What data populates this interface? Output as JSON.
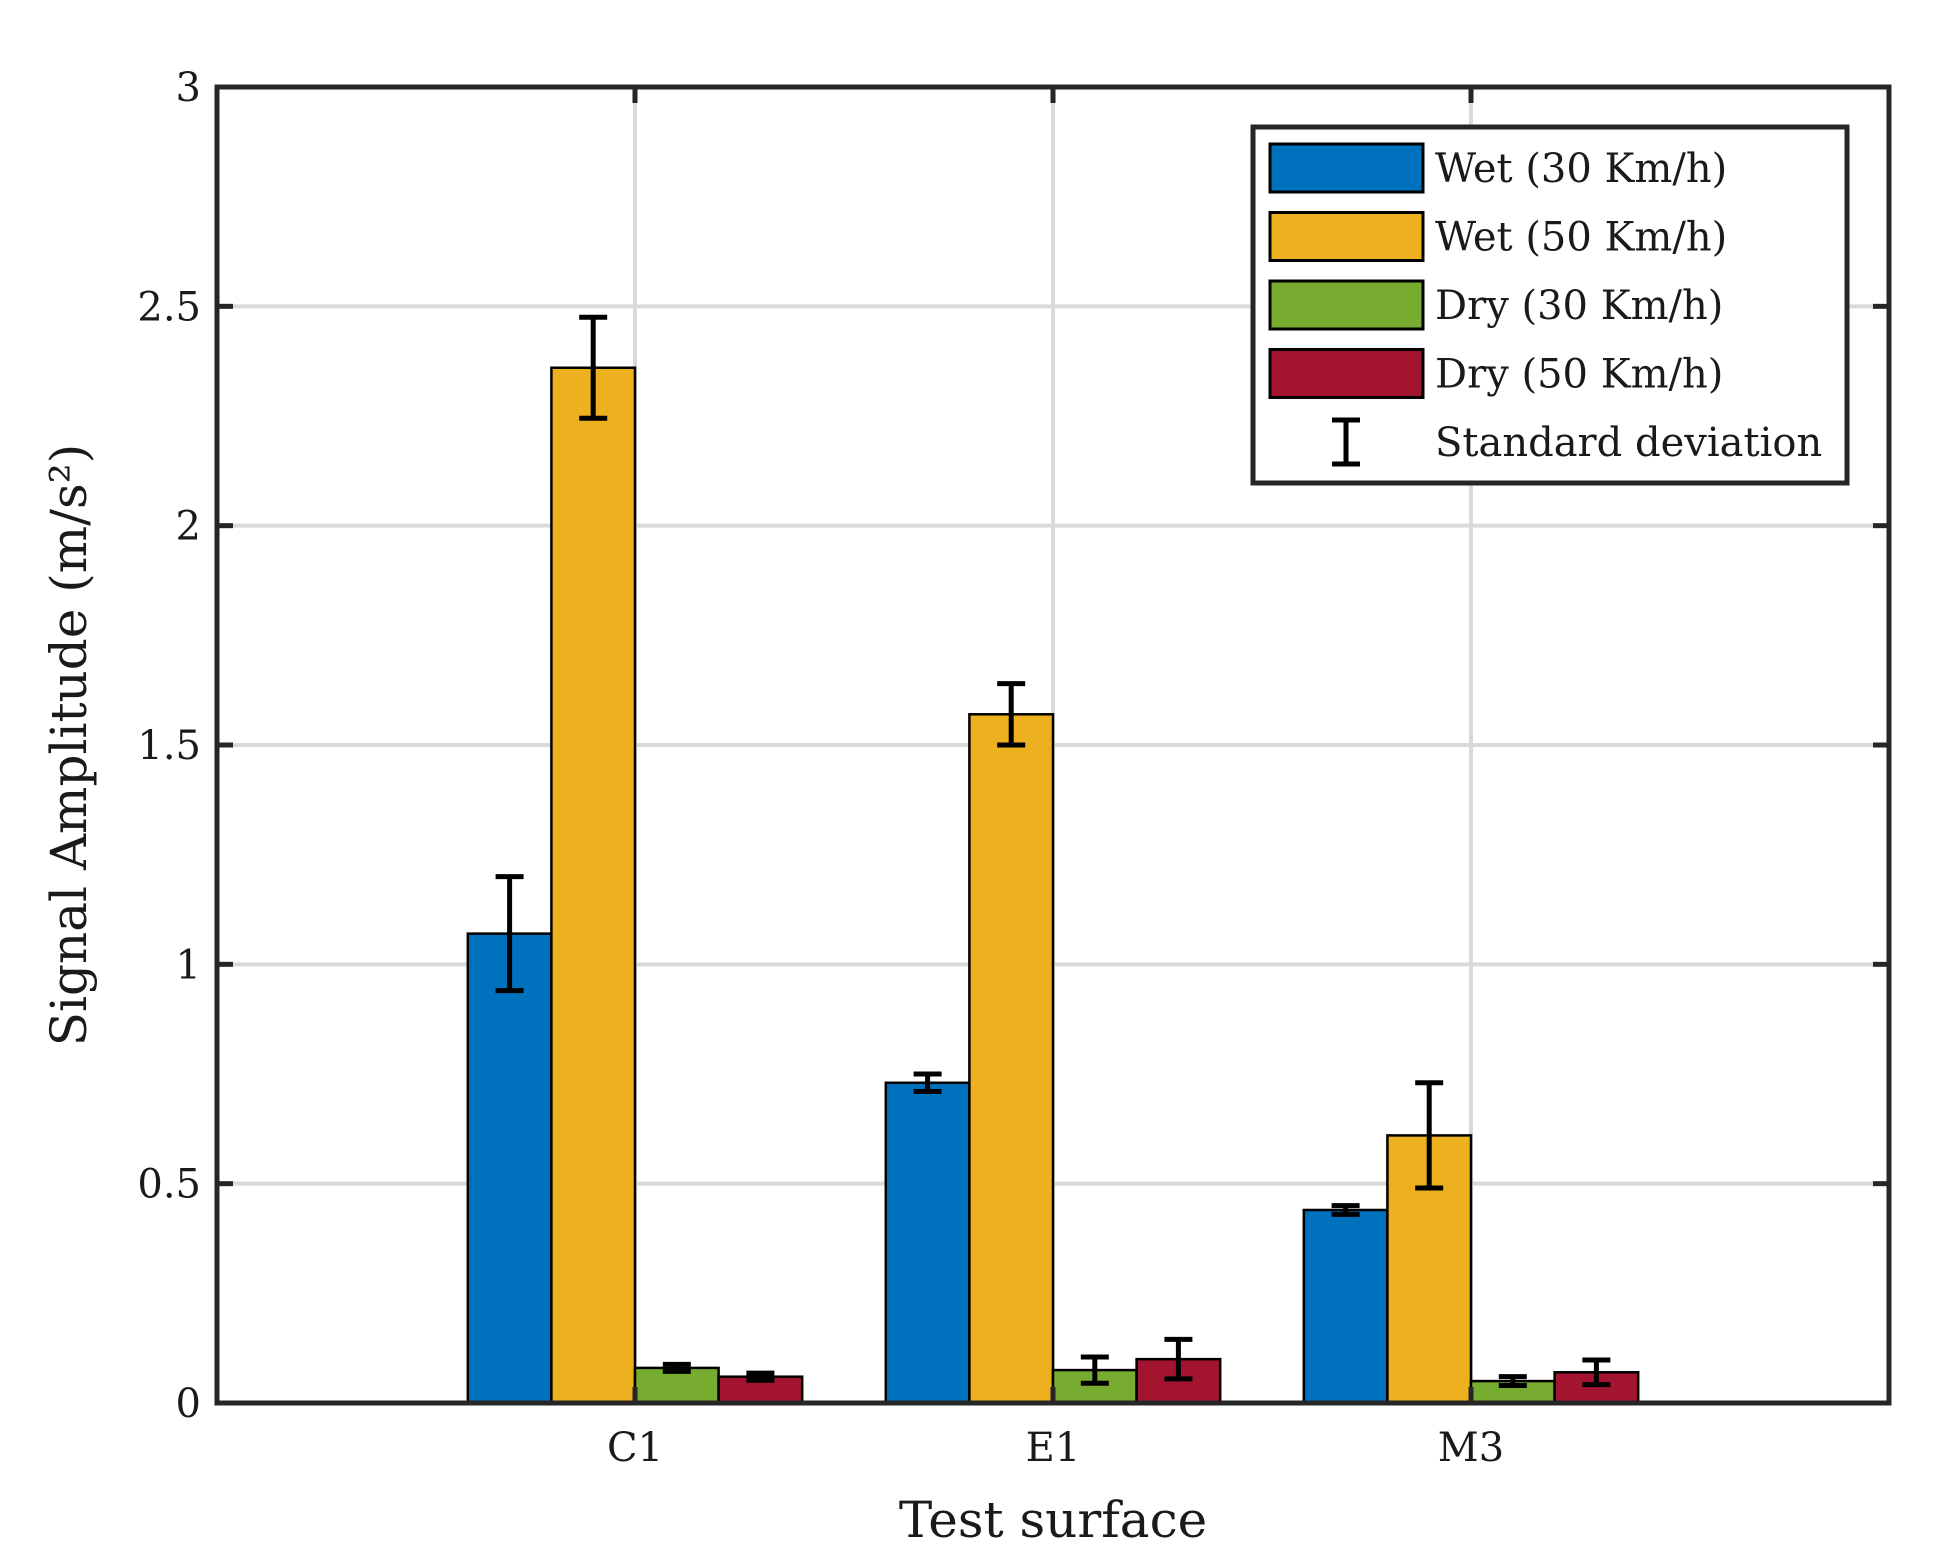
{
  "chart_data": {
    "type": "bar",
    "title": "",
    "xlabel": "Test surface",
    "ylabel": "Signal Amplitude (m/s²)",
    "categories": [
      "C1",
      "E1",
      "M3"
    ],
    "ylim": [
      0,
      3
    ],
    "yticks": [
      "0",
      "0.5",
      "1",
      "1.5",
      "2",
      "2.5",
      "3"
    ],
    "ytick_values": [
      0,
      0.5,
      1,
      1.5,
      2,
      2.5,
      3
    ],
    "grid": true,
    "legend_position": "top-right",
    "error_legend_label": "Standard deviation",
    "series": [
      {
        "name": "Wet (30 Km/h)",
        "color": "#0072BD",
        "values": [
          1.07,
          0.73,
          0.44
        ],
        "errors": [
          0.13,
          0.02,
          0.01
        ]
      },
      {
        "name": "Wet (50 Km/h)",
        "color": "#EDB120",
        "values": [
          2.36,
          1.57,
          0.61
        ],
        "errors": [
          0.115,
          0.07,
          0.12
        ]
      },
      {
        "name": "Dry (30 Km/h)",
        "color": "#77AC30",
        "values": [
          0.08,
          0.075,
          0.05
        ],
        "errors": [
          0.008,
          0.03,
          0.01
        ]
      },
      {
        "name": "Dry (50 Km/h)",
        "color": "#A2142F",
        "values": [
          0.06,
          0.1,
          0.07
        ],
        "errors": [
          0.008,
          0.045,
          0.028
        ]
      }
    ]
  }
}
